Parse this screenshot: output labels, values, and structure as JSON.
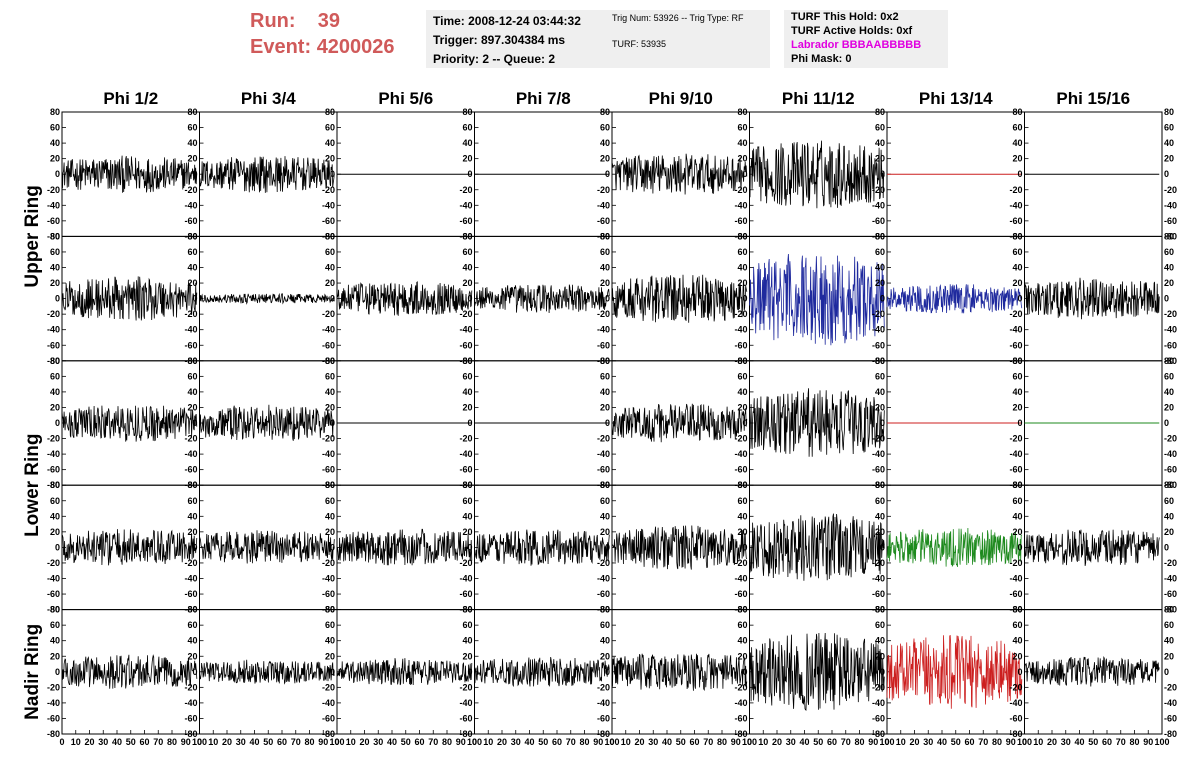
{
  "header": {
    "run_label": "Run:",
    "run_value": "39",
    "event_label": "Event:",
    "event_value": "4200026",
    "time": "Time: 2008-12-24 03:44:32",
    "trigger": "Trigger: 897.304384 ms",
    "priority": "Priority: 2 -- Queue: 2",
    "trig_num": "Trig Num: 53926 -- Trig Type: RF",
    "turf": "TURF: 53935",
    "turf_this_hold": "TURF This Hold: 0x2",
    "turf_active_holds": "TURF Active Holds: 0xf",
    "labrador": "Labrador BBBAABBBBB",
    "phi_mask": "Phi Mask: 0"
  },
  "colors": {
    "run_text": "#d05a5a",
    "labrador_text": "#e000e0",
    "trace_black": "#000000",
    "trace_blue": "#1f2a9e",
    "trace_green": "#1e8a1e",
    "trace_red": "#cc1f1f"
  },
  "chart_data": {
    "type": "line",
    "columns": [
      "Phi 1/2",
      "Phi 3/4",
      "Phi 5/6",
      "Phi 7/8",
      "Phi 9/10",
      "Phi 11/12",
      "Phi 13/14",
      "Phi 15/16"
    ],
    "row_groups": [
      {
        "label": "Upper Ring",
        "rows": [
          0,
          1
        ]
      },
      {
        "label": "Lower Ring",
        "rows": [
          2,
          3
        ]
      },
      {
        "label": "Nadir Ring",
        "rows": [
          4
        ]
      }
    ],
    "xlim": [
      0,
      100
    ],
    "ylim": [
      -80,
      80
    ],
    "xticks": [
      0,
      10,
      20,
      30,
      40,
      50,
      60,
      70,
      80,
      90,
      100
    ],
    "xtick_labels": [
      "0",
      "10",
      "20",
      "30",
      "40",
      "50",
      "60",
      "70",
      "80",
      "90",
      "100"
    ],
    "yticks": [
      80,
      60,
      40,
      20,
      0,
      -20,
      -40,
      -60,
      -80
    ],
    "ytick_labels": [
      "80",
      "60",
      "40",
      "20",
      "0",
      "-20",
      "-40",
      "-60",
      "-80"
    ],
    "grid": false,
    "panels": [
      [
        {
          "amp": 15,
          "color": "black"
        },
        {
          "amp": 15,
          "color": "black"
        },
        {
          "amp": 0,
          "color": "black"
        },
        {
          "amp": 0,
          "color": "black"
        },
        {
          "amp": 17,
          "color": "black"
        },
        {
          "amp": 28,
          "color": "black"
        },
        {
          "amp": 0,
          "color": "red"
        },
        {
          "amp": 0,
          "color": "black"
        }
      ],
      [
        {
          "amp": 18,
          "color": "black"
        },
        {
          "amp": 4,
          "color": "black"
        },
        {
          "amp": 14,
          "color": "black"
        },
        {
          "amp": 12,
          "color": "black"
        },
        {
          "amp": 20,
          "color": "black"
        },
        {
          "amp": 38,
          "color": "blue"
        },
        {
          "amp": 12,
          "color": "blue"
        },
        {
          "amp": 17,
          "color": "black"
        }
      ],
      [
        {
          "amp": 15,
          "color": "black"
        },
        {
          "amp": 15,
          "color": "black"
        },
        {
          "amp": 0,
          "color": "black"
        },
        {
          "amp": 0,
          "color": "black"
        },
        {
          "amp": 16,
          "color": "black"
        },
        {
          "amp": 28,
          "color": "black"
        },
        {
          "amp": 0,
          "color": "red"
        },
        {
          "amp": 0,
          "color": "green"
        }
      ],
      [
        {
          "amp": 15,
          "color": "black"
        },
        {
          "amp": 14,
          "color": "black"
        },
        {
          "amp": 15,
          "color": "black"
        },
        {
          "amp": 15,
          "color": "black"
        },
        {
          "amp": 18,
          "color": "black"
        },
        {
          "amp": 28,
          "color": "black"
        },
        {
          "amp": 16,
          "color": "green"
        },
        {
          "amp": 15,
          "color": "black"
        }
      ],
      [
        {
          "amp": 14,
          "color": "black"
        },
        {
          "amp": 10,
          "color": "black"
        },
        {
          "amp": 11,
          "color": "black"
        },
        {
          "amp": 12,
          "color": "black"
        },
        {
          "amp": 16,
          "color": "black"
        },
        {
          "amp": 32,
          "color": "black"
        },
        {
          "amp": 30,
          "color": "red"
        },
        {
          "amp": 12,
          "color": "black"
        }
      ]
    ]
  }
}
